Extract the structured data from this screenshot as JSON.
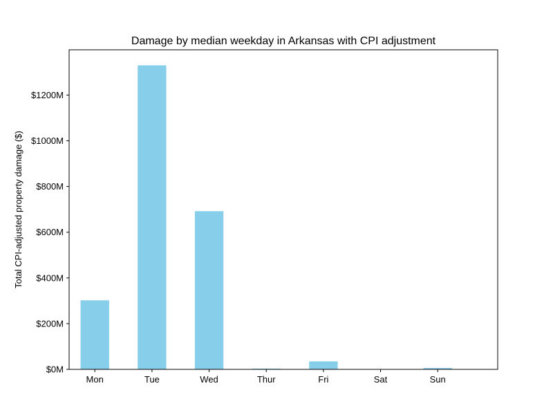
{
  "chart_data": {
    "type": "bar",
    "title": "Damage by median weekday in Arkansas with CPI adjustment",
    "xlabel": "",
    "ylabel": "Total CPI-adjusted property damage ($)",
    "categories": [
      "Mon",
      "Tue",
      "Wed",
      "Thur",
      "Fri",
      "Sat",
      "Sun"
    ],
    "values": [
      302,
      1330,
      692,
      3,
      35,
      0,
      6
    ],
    "value_unit": "millions of dollars",
    "ylim": [
      0,
      1398
    ],
    "yticks": [
      0,
      200,
      400,
      600,
      800,
      1000,
      1200
    ],
    "ytick_labels": [
      "$0M",
      "$200M",
      "$400M",
      "$600M",
      "$800M",
      "$1000M",
      "$1200M"
    ],
    "grid": false,
    "legend": "none",
    "bar_color": "#87CEEB"
  }
}
